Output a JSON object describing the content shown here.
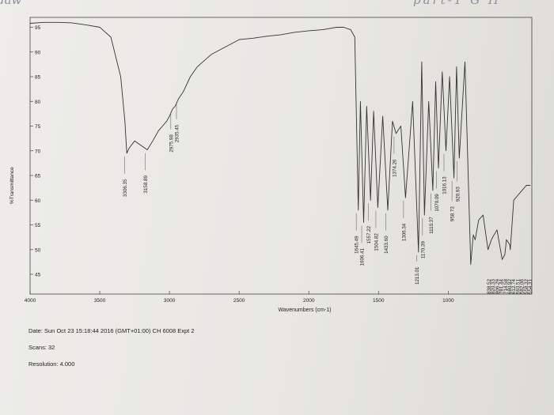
{
  "handwriting": {
    "top_left": "daw",
    "top_right": "part-1  G H"
  },
  "chart_data": {
    "type": "line",
    "title": "",
    "xlabel": "Wavenumbers (cm-1)",
    "ylabel": "%Transmittance",
    "xlim": [
      4000,
      400
    ],
    "ylim": [
      41,
      97
    ],
    "x_ticks": [
      4000,
      3500,
      3000,
      2500,
      2000,
      1500,
      1000
    ],
    "y_ticks": [
      45,
      50,
      55,
      60,
      65,
      70,
      75,
      80,
      85,
      90,
      95
    ],
    "grid": false,
    "series": [
      {
        "x": [
          4000,
          3900,
          3800,
          3700,
          3600,
          3500,
          3420,
          3350,
          3320,
          3306.35,
          3290,
          3250,
          3200,
          3158.89,
          3120,
          3080,
          3050,
          3020,
          3000,
          2985,
          2975.98,
          2960,
          2935.45,
          2900,
          2850,
          2800,
          2700,
          2600,
          2500,
          2400,
          2300,
          2200,
          2100,
          2000,
          1900,
          1800,
          1750,
          1700,
          1670,
          1645.49,
          1630,
          1606.41,
          1585,
          1557.22,
          1535,
          1504.82,
          1470,
          1433.6,
          1400,
          1374.26,
          1340,
          1306.34,
          1255,
          1213.01,
          1190,
          1170.39,
          1140,
          1110.37,
          1090,
          1070.09,
          1043,
          1016.13,
          990,
          958.73,
          940,
          920.93,
          880,
          838.52,
          820.33,
          806.29,
          781.44,
          750,
          714.58,
          690,
          680.92,
          650,
          612.74,
          593.51,
          582.06,
          558.32,
          554.31,
          530,
          500,
          470,
          440,
          410
        ],
        "y": [
          95.8,
          96,
          96,
          95.9,
          95.5,
          95,
          93,
          85,
          76,
          69.5,
          70.5,
          72,
          71,
          70.2,
          72,
          74,
          75,
          76,
          77,
          78,
          78.5,
          79,
          80.5,
          82,
          85,
          87,
          89.5,
          91,
          92.5,
          92.8,
          93.2,
          93.5,
          94,
          94.3,
          94.5,
          95,
          95,
          94.5,
          93,
          58,
          80,
          55.5,
          79,
          60,
          78,
          58.5,
          77,
          58,
          76,
          73.5,
          75,
          60.5,
          80,
          49.5,
          88,
          57,
          80,
          62,
          84,
          66.5,
          86,
          70,
          85,
          64.5,
          87,
          68.5,
          88,
          47,
          53,
          52,
          56,
          57,
          50,
          52,
          52.5,
          54,
          48,
          49,
          52,
          51,
          50,
          60,
          61,
          62,
          63,
          63
        ]
      }
    ],
    "peak_labels": [
      "3306.35",
      "3158.89",
      "2975.98",
      "2935.45",
      "1645.49",
      "1606.41",
      "1557.22",
      "1504.82",
      "1433.60",
      "1374.26",
      "1306.34",
      "1213.01",
      "1170.39",
      "1110.37",
      "1070.09",
      "1016.13",
      "958.73",
      "920.93",
      "838.52",
      "820.33",
      "806.29",
      "781.44",
      "714.58",
      "680.92",
      "612.74",
      "593.51",
      "582.06",
      "558.32",
      "554.31"
    ]
  },
  "meta": {
    "date": "Date: Sun Oct 23 15:18:44 2016 (GMT+01:00)  CH 6008 Expt 2",
    "scans": "Scans: 32",
    "resolution": "Resolution: 4.000"
  }
}
